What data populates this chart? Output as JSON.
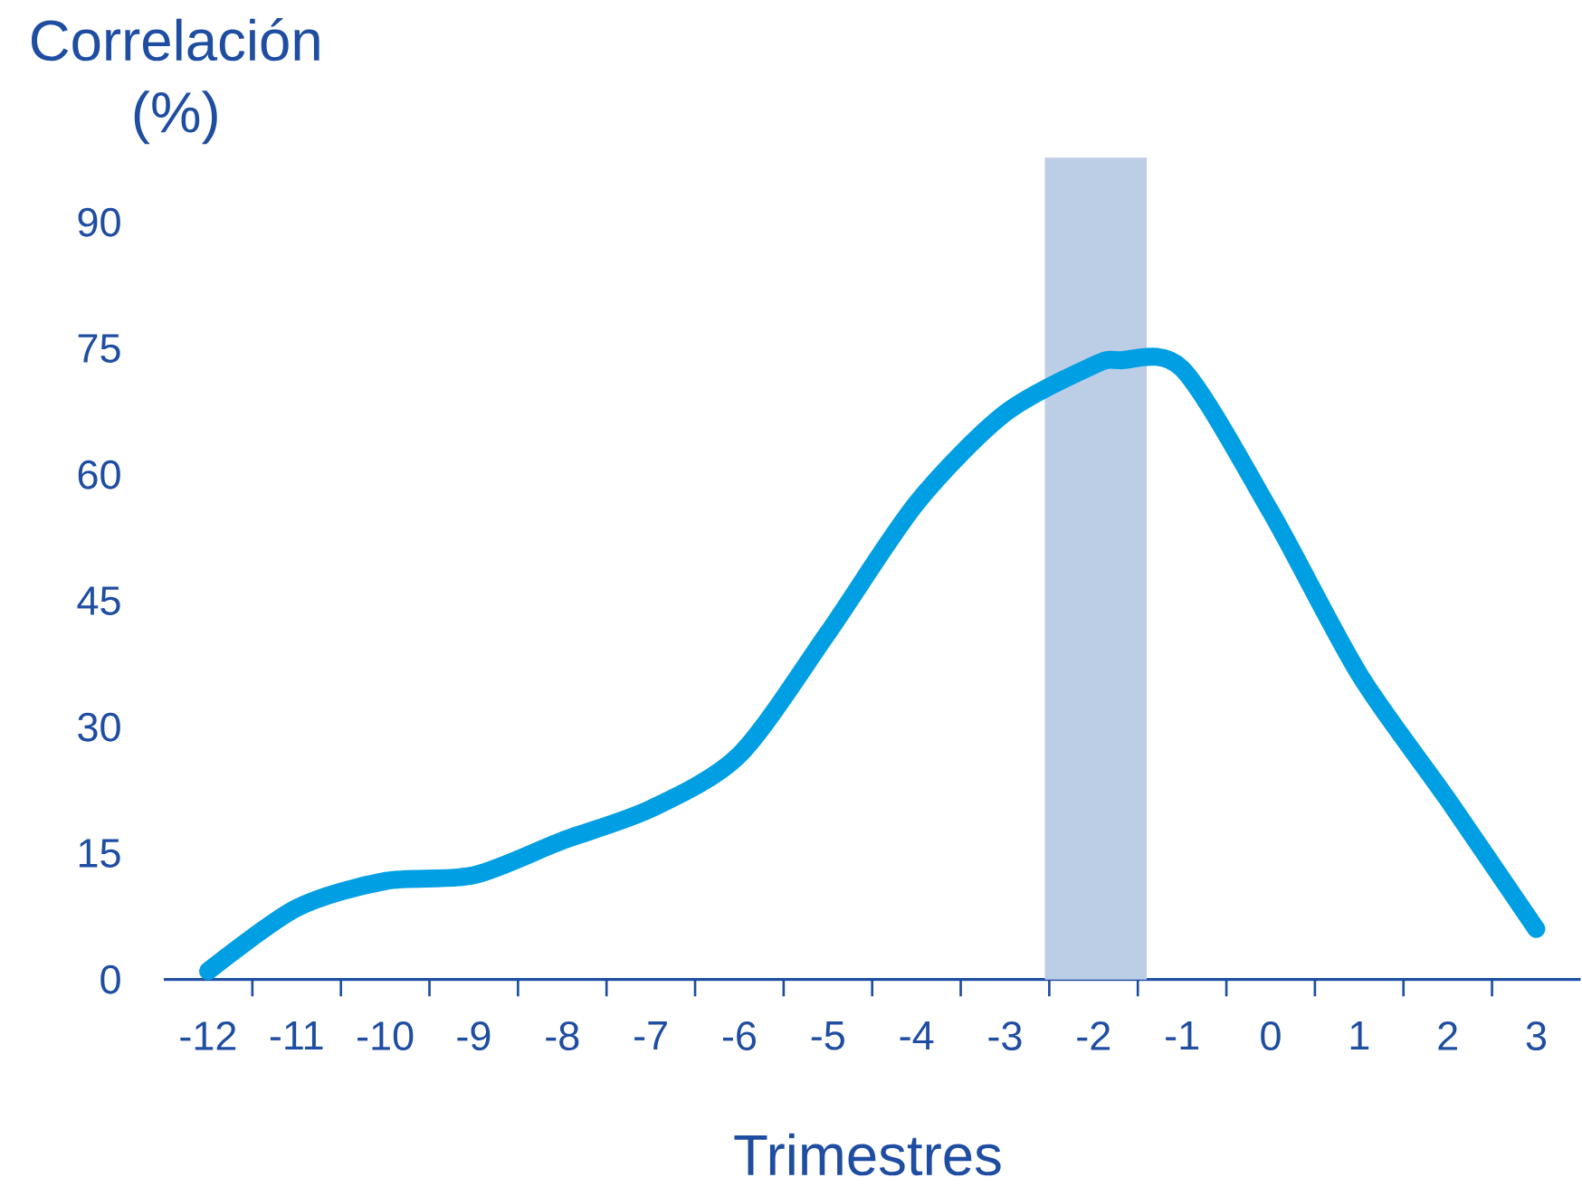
{
  "chart_data": {
    "type": "line",
    "xlabel": "Trimestres",
    "ylabel": "Correlación (%)",
    "x": [
      -12,
      -11,
      -10,
      -9,
      -8,
      -7,
      -6,
      -5,
      -4,
      -3,
      -2,
      -1.7,
      -1,
      0,
      1,
      2,
      3
    ],
    "values": [
      1,
      8.5,
      11.7,
      12.4,
      16.5,
      20.3,
      26.7,
      41.2,
      56.6,
      67.3,
      73,
      73.6,
      72.6,
      55.6,
      36.3,
      21.4,
      6
    ],
    "color": "#009fe3",
    "line_style": "solid",
    "marker": "none",
    "xlim": [
      -12.5,
      3.5
    ],
    "ylim": [
      0,
      90
    ],
    "xticks": [
      -12,
      -11,
      -10,
      -9,
      -8,
      -7,
      -6,
      -5,
      -4,
      -3,
      -2,
      -1,
      0,
      1,
      2,
      3
    ],
    "yticks": [
      0,
      15,
      30,
      45,
      60,
      75,
      90
    ],
    "bands": [
      {
        "axis": "x",
        "from": -2.55,
        "to": -1.4,
        "color": "#bccde6"
      }
    ]
  }
}
